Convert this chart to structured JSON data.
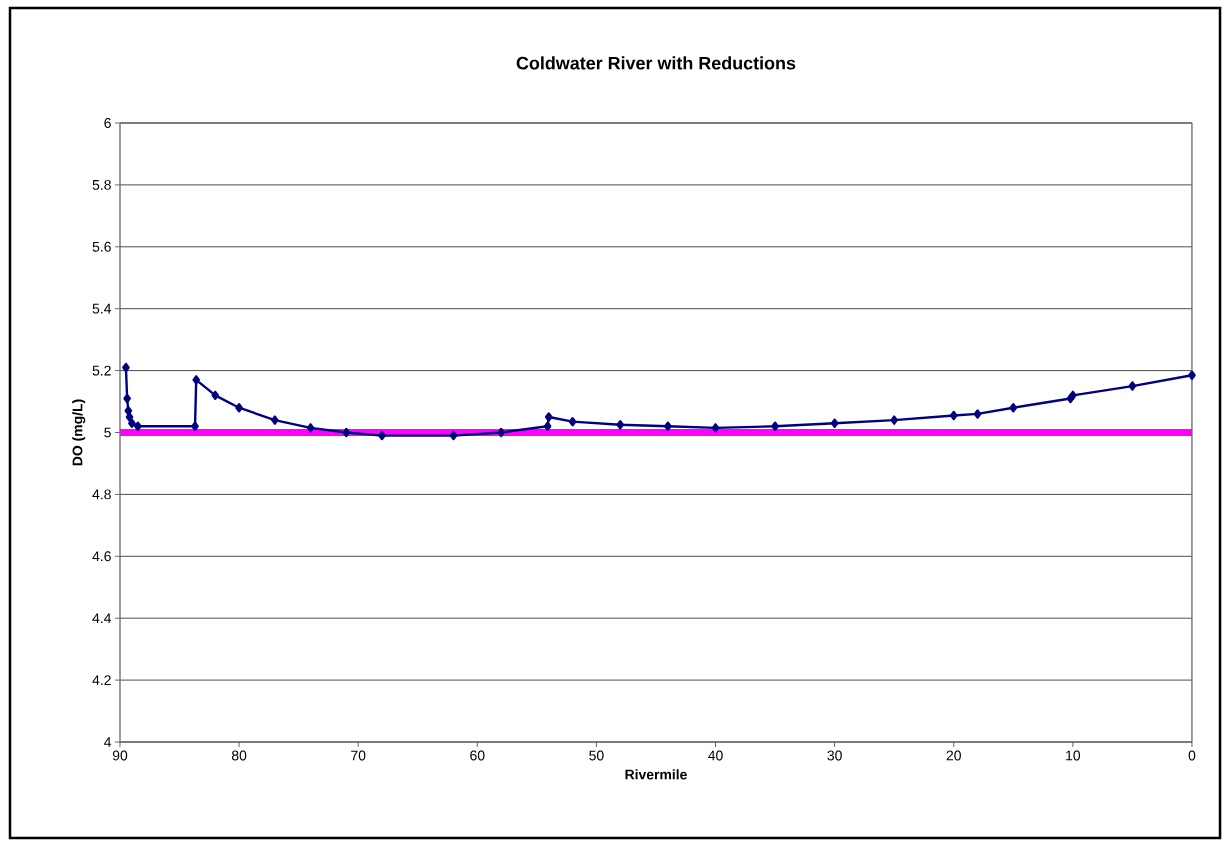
{
  "chart_data": {
    "type": "line",
    "title": "Coldwater River with Reductions",
    "xlabel": "Rivermile",
    "ylabel": "DO (mg/L)",
    "xlim": [
      90,
      0
    ],
    "ylim": [
      4,
      6
    ],
    "xticks": [
      90,
      80,
      70,
      60,
      50,
      40,
      30,
      20,
      10,
      0
    ],
    "yticks": [
      4,
      4.2,
      4.4,
      4.6,
      4.8,
      5,
      5.2,
      5.4,
      5.6,
      5.8,
      6
    ],
    "grid": "y",
    "series": [
      {
        "color": "#000080",
        "marker": "diamond",
        "x": [
          89.5,
          89.4,
          89.3,
          89.2,
          89.0,
          88.5,
          83.7,
          83.6,
          82,
          80,
          77,
          74,
          71,
          68,
          62,
          58,
          54.1,
          54.0,
          52,
          48,
          44,
          40,
          35,
          30,
          25,
          20,
          18,
          15,
          10.2,
          10,
          5,
          0
        ],
        "values": [
          5.21,
          5.11,
          5.07,
          5.05,
          5.03,
          5.02,
          5.02,
          5.17,
          5.12,
          5.08,
          5.04,
          5.015,
          5.0,
          4.99,
          4.99,
          5.0,
          5.02,
          5.05,
          5.035,
          5.025,
          5.02,
          5.015,
          5.02,
          5.03,
          5.04,
          5.055,
          5.06,
          5.08,
          5.11,
          5.12,
          5.15,
          5.185
        ]
      },
      {
        "color": "#ff00ff",
        "marker": "none",
        "x": [
          90,
          0
        ],
        "values": [
          5,
          5
        ]
      }
    ]
  }
}
